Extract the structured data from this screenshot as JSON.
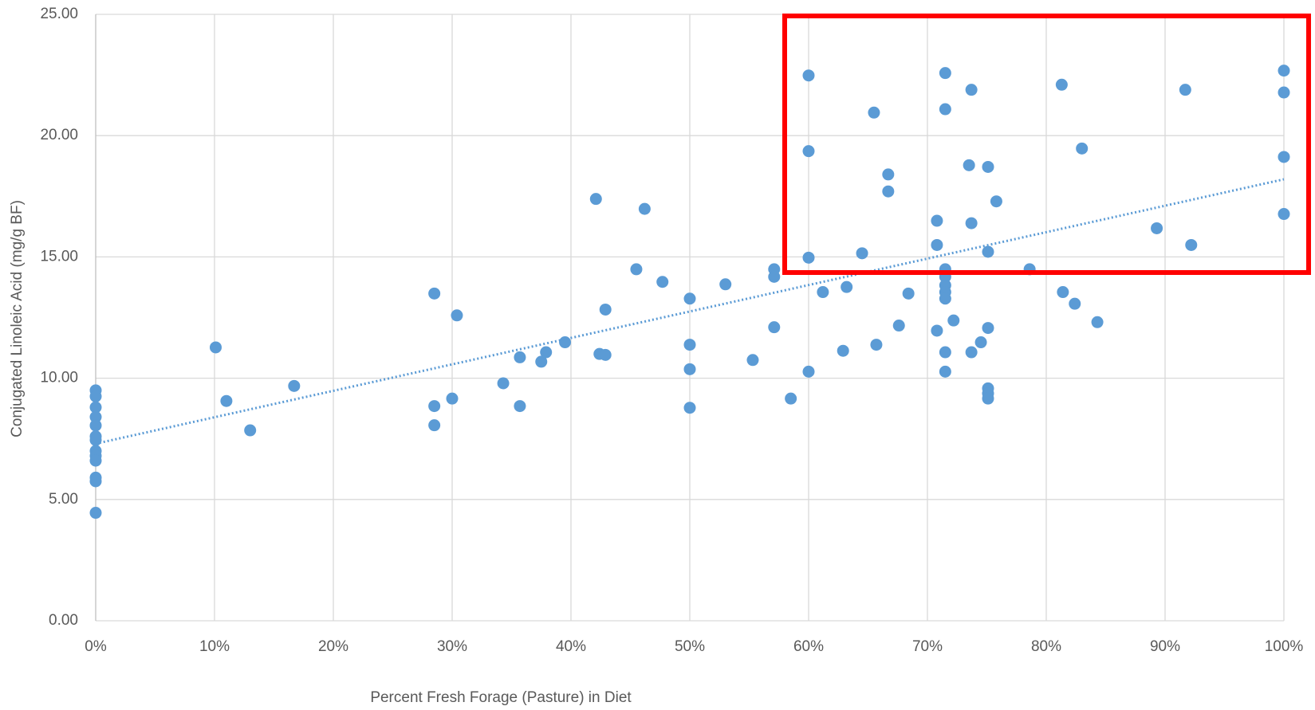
{
  "chart_data": {
    "type": "scatter",
    "xlabel": "Percent Fresh Forage (Pasture) in Diet",
    "ylabel": "Conjugated Linoleic Acid (mg/g BF)",
    "xlim": [
      0,
      100
    ],
    "xticks": [
      {
        "value": 0,
        "label": "0%"
      },
      {
        "value": 10,
        "label": "10%"
      },
      {
        "value": 20,
        "label": "20%"
      },
      {
        "value": 30,
        "label": "30%"
      },
      {
        "value": 40,
        "label": "40%"
      },
      {
        "value": 50,
        "label": "50%"
      },
      {
        "value": 60,
        "label": "60%"
      },
      {
        "value": 70,
        "label": "70%"
      },
      {
        "value": 80,
        "label": "80%"
      },
      {
        "value": 90,
        "label": "90%"
      },
      {
        "value": 100,
        "label": "100%"
      }
    ],
    "ylim": [
      0,
      25
    ],
    "yticks": [
      {
        "value": 0,
        "label": "0.00"
      },
      {
        "value": 5,
        "label": "5.00"
      },
      {
        "value": 10,
        "label": "10.00"
      },
      {
        "value": 15,
        "label": "15.00"
      },
      {
        "value": 20,
        "label": "20.00"
      },
      {
        "value": 25,
        "label": "25.00"
      }
    ],
    "grid": true,
    "series": [
      {
        "color": "#5b9bd5",
        "x": [
          0,
          0,
          0,
          0,
          0,
          0,
          0,
          0,
          0,
          0,
          0,
          0,
          0,
          10.1,
          11.0,
          13.0,
          16.7,
          28.5,
          28.5,
          28.5,
          30.4,
          30.0,
          34.3,
          35.7,
          35.7,
          37.5,
          37.9,
          39.5,
          42.1,
          42.4,
          42.9,
          42.9,
          45.5,
          46.2,
          47.7,
          50.0,
          50.0,
          50.0,
          50.0,
          53.0,
          55.3,
          57.1,
          57.1,
          57.1,
          58.5,
          60.0,
          60.0,
          60.0,
          60.0,
          61.2,
          62.9,
          63.2,
          64.5,
          65.5,
          65.7,
          66.7,
          66.7,
          67.6,
          68.4,
          70.8,
          70.8,
          70.8,
          71.5,
          71.5,
          71.5,
          71.5,
          71.5,
          71.5,
          71.5,
          71.5,
          71.5,
          72.2,
          73.5,
          73.7,
          73.7,
          73.7,
          74.5,
          75.1,
          75.1,
          75.1,
          75.1,
          75.1,
          75.1,
          75.8,
          78.6,
          81.3,
          81.4,
          82.4,
          83.0,
          84.3,
          89.3,
          91.7,
          92.2,
          100,
          100,
          100,
          100
        ],
        "values": [
          9.5,
          9.25,
          8.8,
          8.4,
          8.05,
          7.6,
          7.45,
          7.0,
          6.8,
          6.6,
          5.9,
          5.75,
          4.45,
          11.27,
          9.06,
          7.85,
          9.68,
          13.49,
          8.85,
          8.06,
          12.59,
          9.16,
          9.79,
          10.86,
          8.85,
          10.68,
          11.07,
          11.48,
          17.39,
          11.0,
          10.96,
          12.83,
          14.49,
          16.98,
          13.97,
          13.28,
          11.38,
          10.37,
          8.78,
          13.87,
          10.75,
          14.49,
          14.18,
          12.1,
          9.16,
          22.48,
          19.36,
          14.97,
          10.27,
          13.55,
          11.13,
          13.76,
          15.15,
          20.95,
          11.38,
          18.4,
          17.7,
          12.17,
          13.49,
          16.49,
          15.49,
          11.96,
          22.58,
          21.09,
          14.49,
          14.18,
          13.83,
          13.55,
          13.28,
          11.07,
          10.27,
          12.38,
          18.78,
          21.89,
          16.39,
          11.07,
          11.48,
          18.71,
          15.21,
          12.07,
          9.58,
          9.37,
          9.16,
          17.29,
          14.49,
          22.1,
          13.55,
          13.07,
          19.47,
          12.31,
          16.18,
          21.89,
          15.49,
          22.68,
          21.78,
          19.12,
          16.77
        ]
      }
    ],
    "trendline": {
      "x": [
        0,
        100
      ],
      "values": [
        7.3,
        18.2
      ],
      "color": "#5b9bd5"
    }
  }
}
